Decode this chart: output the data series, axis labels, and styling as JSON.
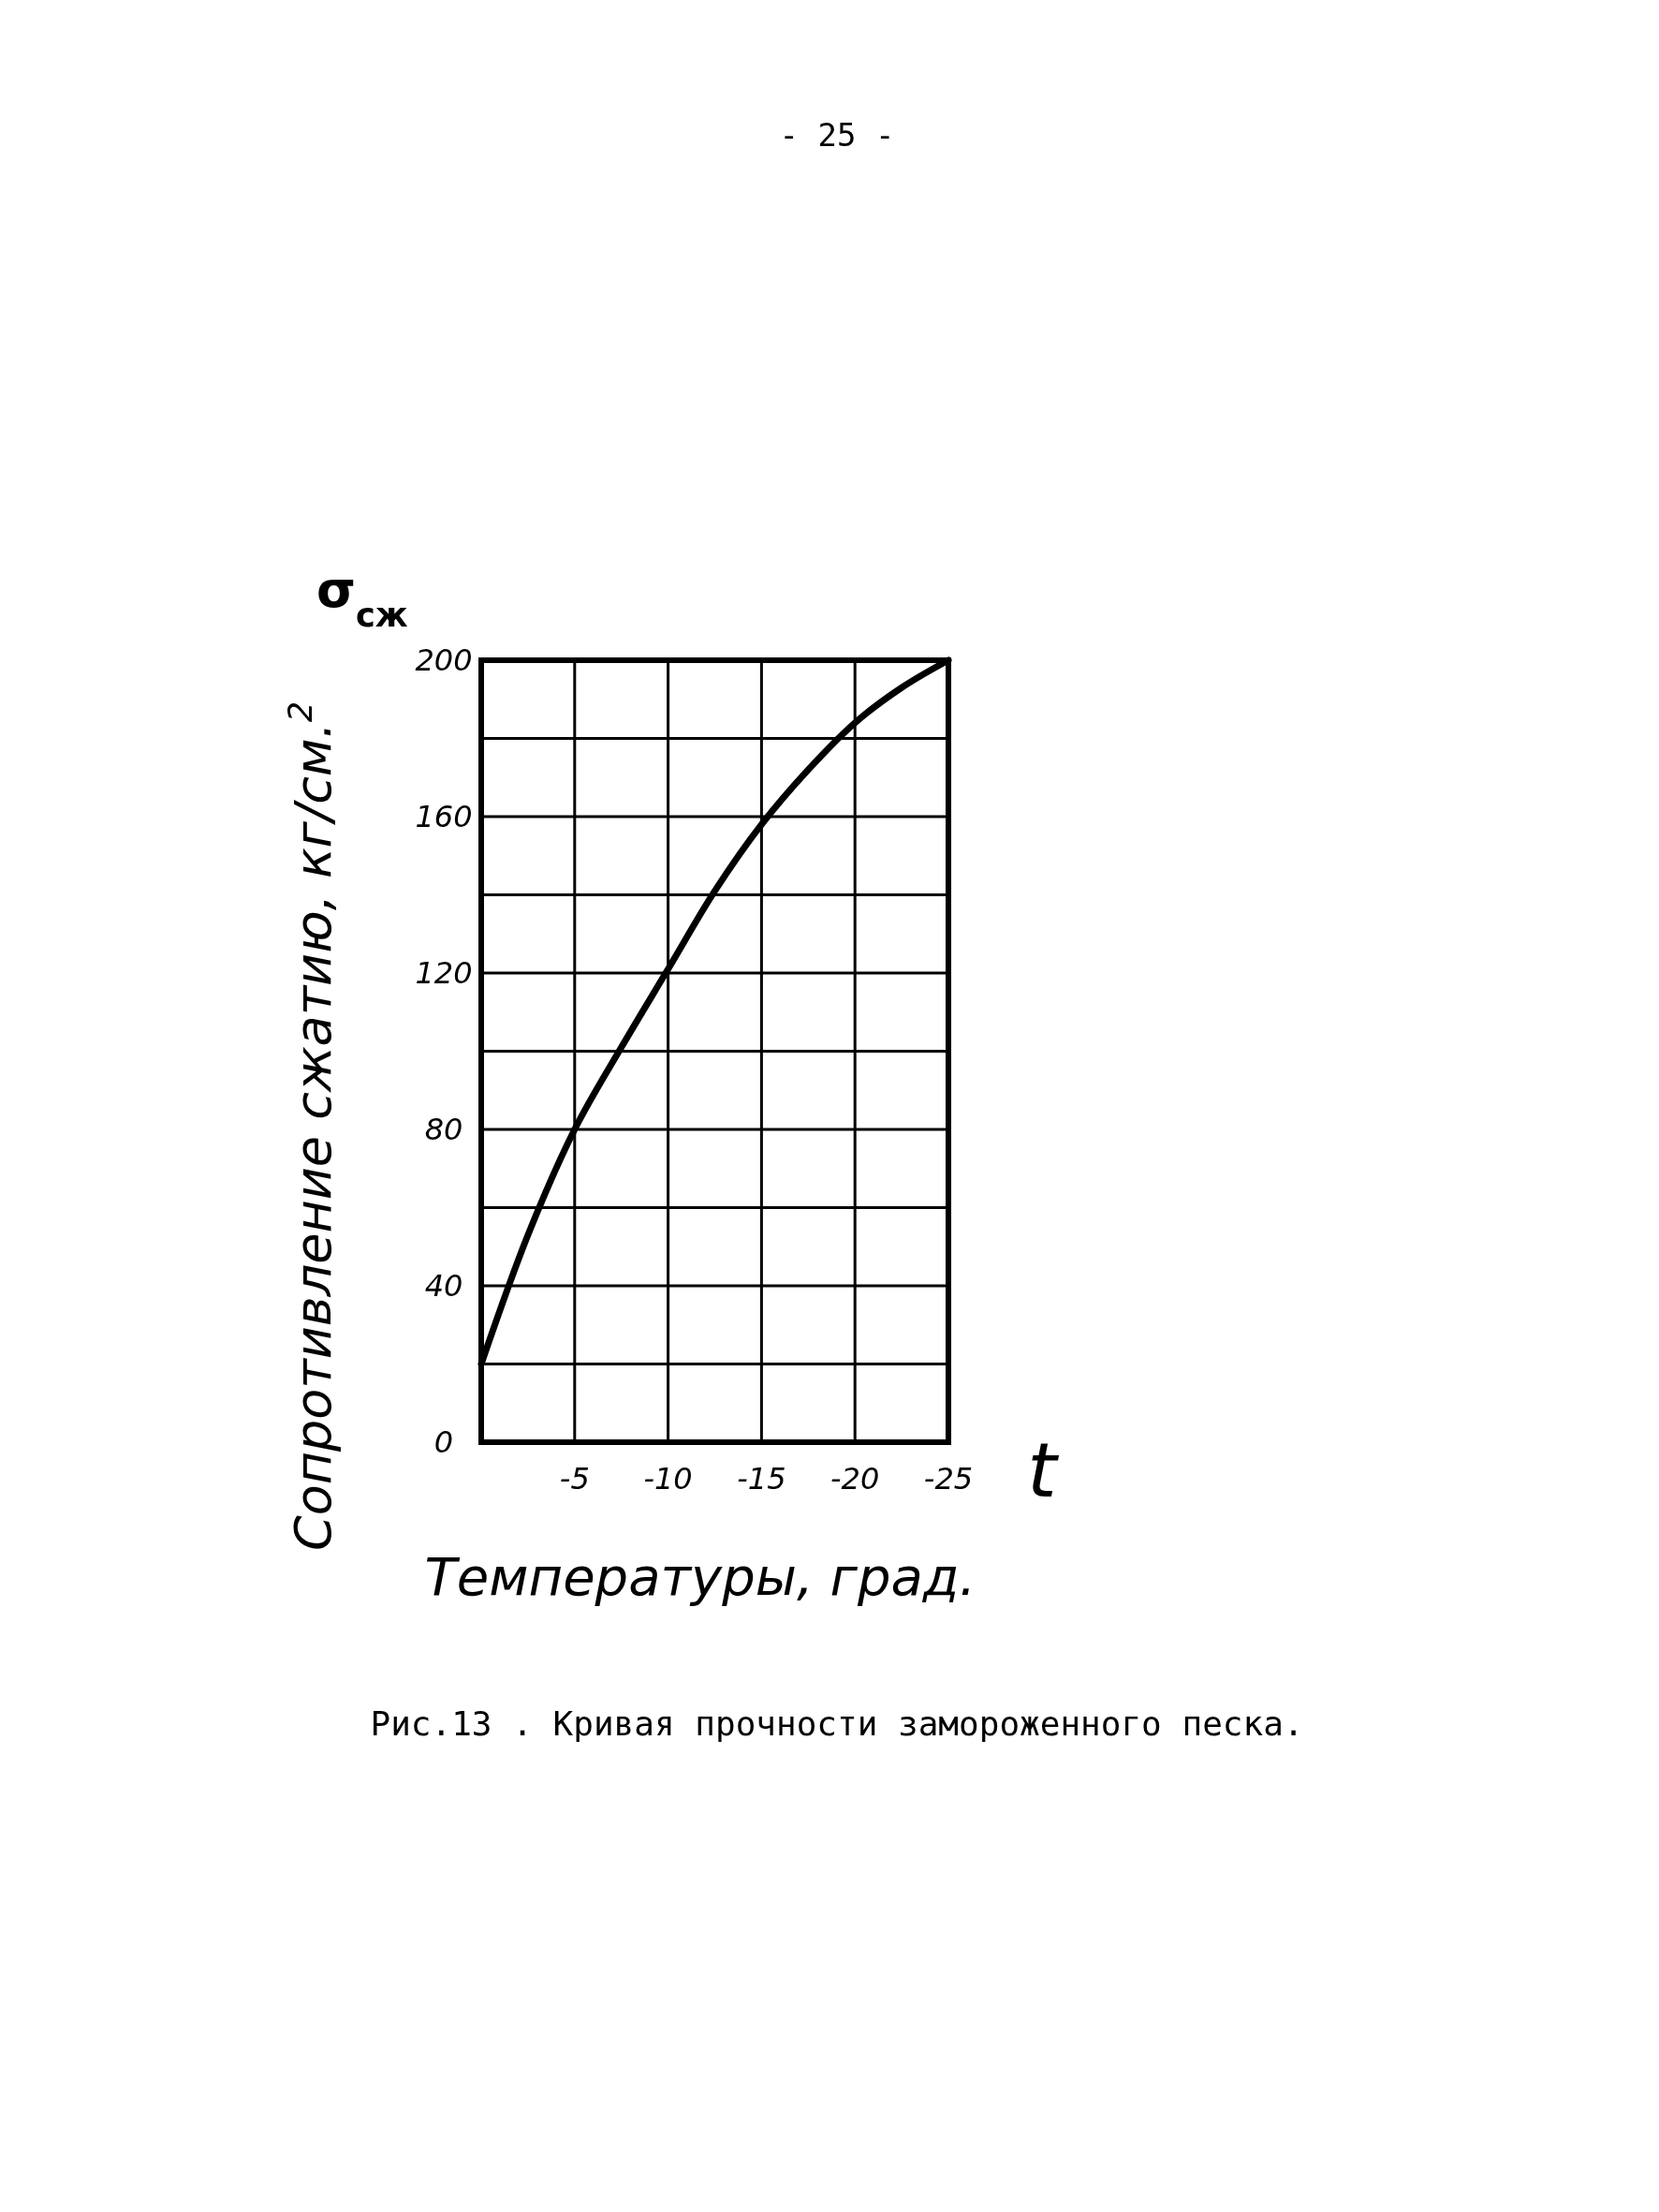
{
  "chart_data": {
    "type": "line",
    "xlabel": "Температуры, град.",
    "ylabel": "Сопротивление сжатию, кг/см.$^{2}$",
    "annotations": [
      "- 25 -",
      "σ$_{сж}$",
      "t",
      "Рис.13 . Кривая прочности замороженного песка."
    ],
    "x": [
      0,
      -2.5,
      -5,
      -7.5,
      -10,
      -12.5,
      -15,
      -17.5,
      -20,
      -22.5,
      -25
    ],
    "series": [
      {
        "color": "#000000",
        "values": [
          20,
          53,
          80,
          101,
          121,
          141,
          158,
          172,
          184,
          193,
          200
        ]
      }
    ],
    "xlim": [
      0,
      -25
    ],
    "xticks": [
      -5,
      -10,
      -15,
      -20,
      -25
    ],
    "ylim": [
      0,
      200
    ],
    "yticks": [
      0,
      {
        "value": 20,
        "label": null
      },
      40,
      {
        "value": 60,
        "label": null
      },
      80,
      {
        "value": 100,
        "label": null
      },
      120,
      {
        "value": 140,
        "label": null
      },
      160,
      {
        "value": 180,
        "label": null
      },
      200
    ],
    "grid": true,
    "marker": "none",
    "line_style": "solid"
  }
}
